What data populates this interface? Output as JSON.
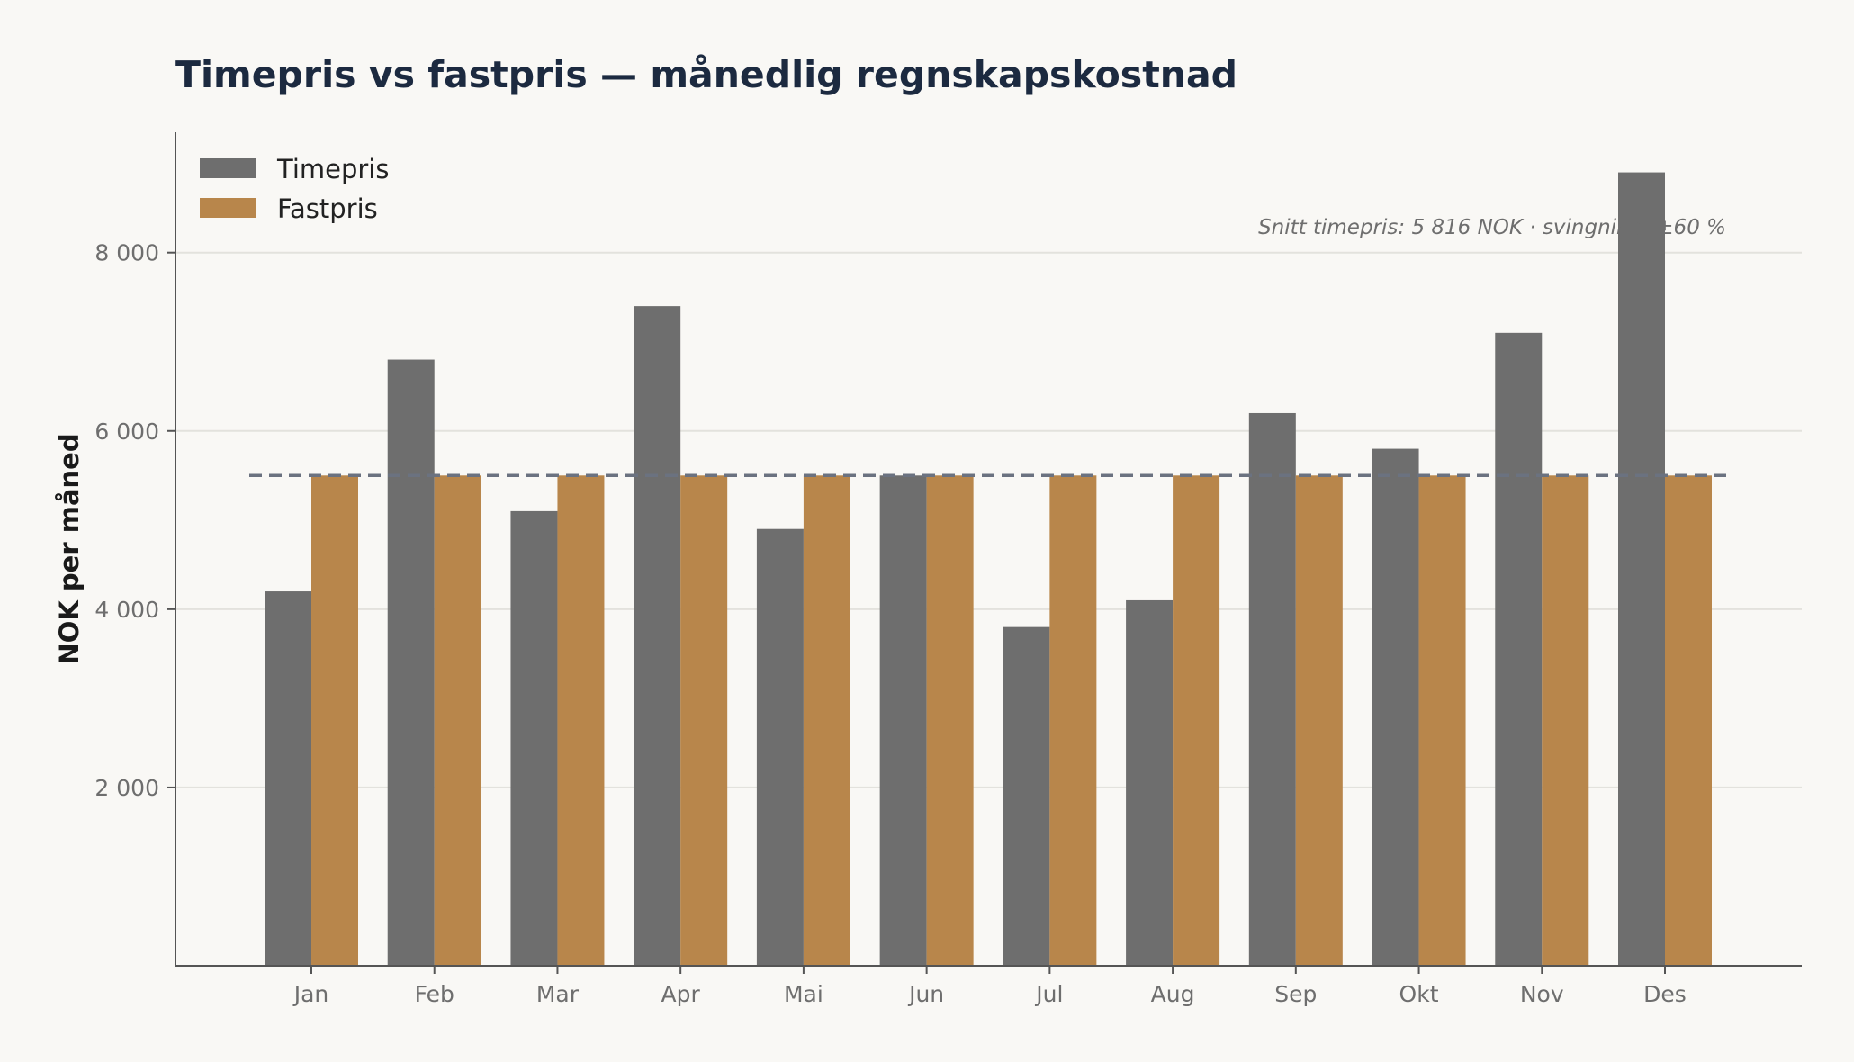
{
  "chart_data": {
    "type": "bar",
    "title": "Timepris vs fastpris — månedlig regnskapskostnad",
    "xlabel": "",
    "ylabel": "NOK per måned",
    "categories": [
      "Jan",
      "Feb",
      "Mar",
      "Apr",
      "Mai",
      "Jun",
      "Jul",
      "Aug",
      "Sep",
      "Okt",
      "Nov",
      "Des"
    ],
    "series": [
      {
        "name": "Timepris",
        "color": "#6e6e6e",
        "values": [
          4200,
          6800,
          5100,
          7400,
          4900,
          5500,
          3800,
          4100,
          6200,
          5800,
          7100,
          8900
        ]
      },
      {
        "name": "Fastpris",
        "color": "#b8864b",
        "values": [
          5500,
          5500,
          5500,
          5500,
          5500,
          5500,
          5500,
          5500,
          5500,
          5500,
          5500,
          5500
        ]
      }
    ],
    "reference_line": {
      "value": 5500,
      "style": "dashed",
      "color": "#6b7280"
    },
    "yticks": [
      2000,
      4000,
      6000,
      8000
    ],
    "ytick_labels": [
      "2 000",
      "4 000",
      "6 000",
      "8 000"
    ],
    "ylim": [
      0,
      9350
    ],
    "grid": true,
    "legend_position": "top-left",
    "annotation": "Snitt timepris: 5 816 NOK · svingning: ±60 %"
  }
}
